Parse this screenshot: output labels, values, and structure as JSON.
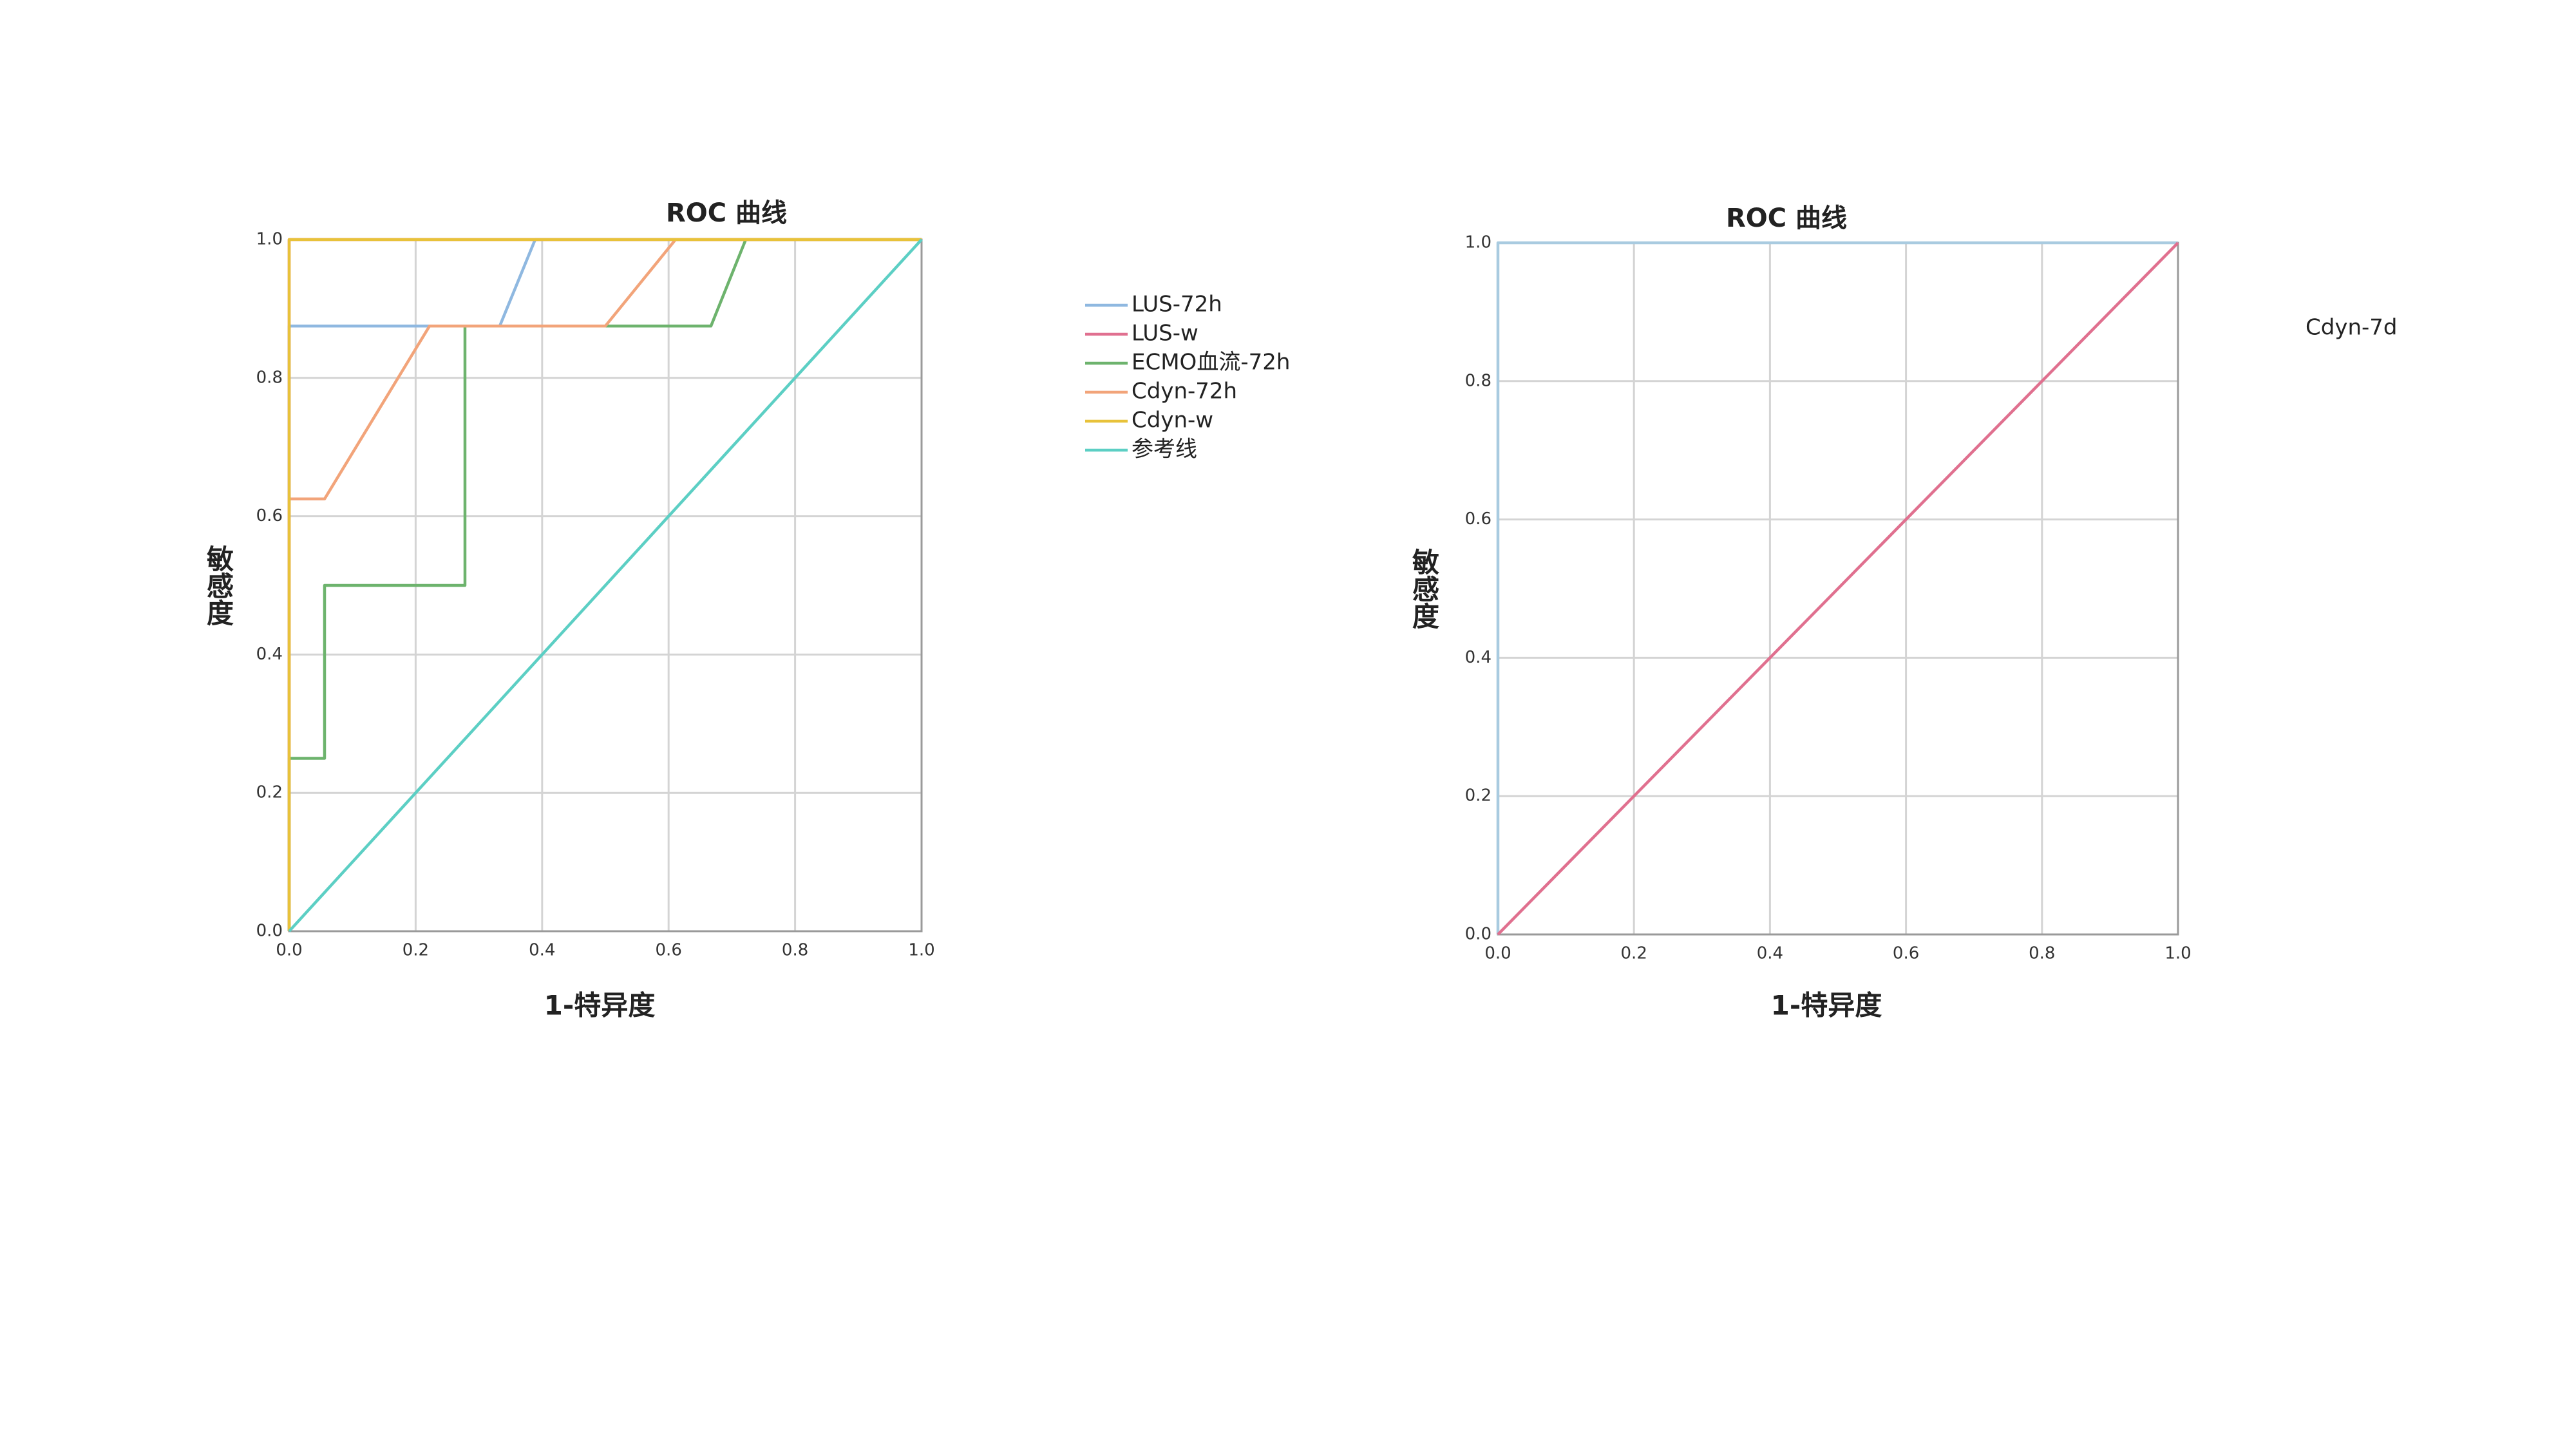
{
  "chart_data": [
    {
      "type": "line",
      "title": "ROC 曲线",
      "xlabel": "1-特异度",
      "ylabel": "敏感度",
      "xlim": [
        0,
        1
      ],
      "ylim": [
        0,
        1
      ],
      "grid": true,
      "legend": "right",
      "legend_swatches": true,
      "xticks": [
        {
          "value": 0,
          "label": "0.0"
        },
        0.2,
        0.4,
        0.6,
        0.8,
        {
          "value": 1,
          "label": "1.0"
        }
      ],
      "yticks": [
        {
          "value": 0,
          "label": "0.0"
        },
        0.2,
        0.4,
        0.6,
        0.8,
        {
          "value": 1,
          "label": "1.0"
        }
      ],
      "series": [
        {
          "name": "LUS-72h",
          "color": "#8fb8e0",
          "x": [
            0,
            0,
            0.333,
            0.389,
            1
          ],
          "values": [
            0,
            0.875,
            0.875,
            1,
            1
          ]
        },
        {
          "name": "LUS-w",
          "color": "#e07090",
          "x": [
            0,
            0,
            1
          ],
          "values": [
            0,
            1,
            1
          ]
        },
        {
          "name": "ECMO血流-72h",
          "color": "#6db36d",
          "x": [
            0,
            0,
            0.056,
            0.056,
            0.278,
            0.278,
            0.667,
            0.722,
            1
          ],
          "values": [
            0,
            0.25,
            0.25,
            0.5,
            0.5,
            0.875,
            0.875,
            1,
            1
          ]
        },
        {
          "name": "Cdyn-72h",
          "color": "#f2a47a",
          "x": [
            0,
            0,
            0.056,
            0.222,
            0.5,
            0.611,
            1
          ],
          "values": [
            0,
            0.625,
            0.625,
            0.875,
            0.875,
            1,
            1
          ]
        },
        {
          "name": "Cdyn-w",
          "color": "#e8c23a",
          "x": [
            0,
            0,
            1
          ],
          "values": [
            0,
            1,
            1
          ]
        },
        {
          "name": "参考线",
          "color": "#5ccfc4",
          "x": [
            0,
            1
          ],
          "values": [
            0,
            1
          ]
        }
      ]
    },
    {
      "type": "line",
      "title": "ROC 曲线",
      "xlabel": "1-特异度",
      "ylabel": "敏感度",
      "xlim": [
        0,
        1
      ],
      "ylim": [
        0,
        1
      ],
      "grid": true,
      "legend": "right",
      "legend_swatches": false,
      "xticks": [
        {
          "value": 0,
          "label": "0.0"
        },
        0.2,
        0.4,
        0.6,
        0.8,
        {
          "value": 1,
          "label": "1.0"
        }
      ],
      "yticks": [
        {
          "value": 0,
          "label": "0.0"
        },
        0.2,
        0.4,
        0.6,
        0.8,
        {
          "value": 1,
          "label": "1.0"
        }
      ],
      "series": [
        {
          "name": "Cdyn-7d",
          "color": "#a9cbe0",
          "x": [
            0,
            0,
            1
          ],
          "values": [
            0,
            1,
            1
          ]
        },
        {
          "color": "#e0708f",
          "x": [
            0,
            1
          ],
          "values": [
            0,
            1
          ]
        }
      ]
    }
  ]
}
